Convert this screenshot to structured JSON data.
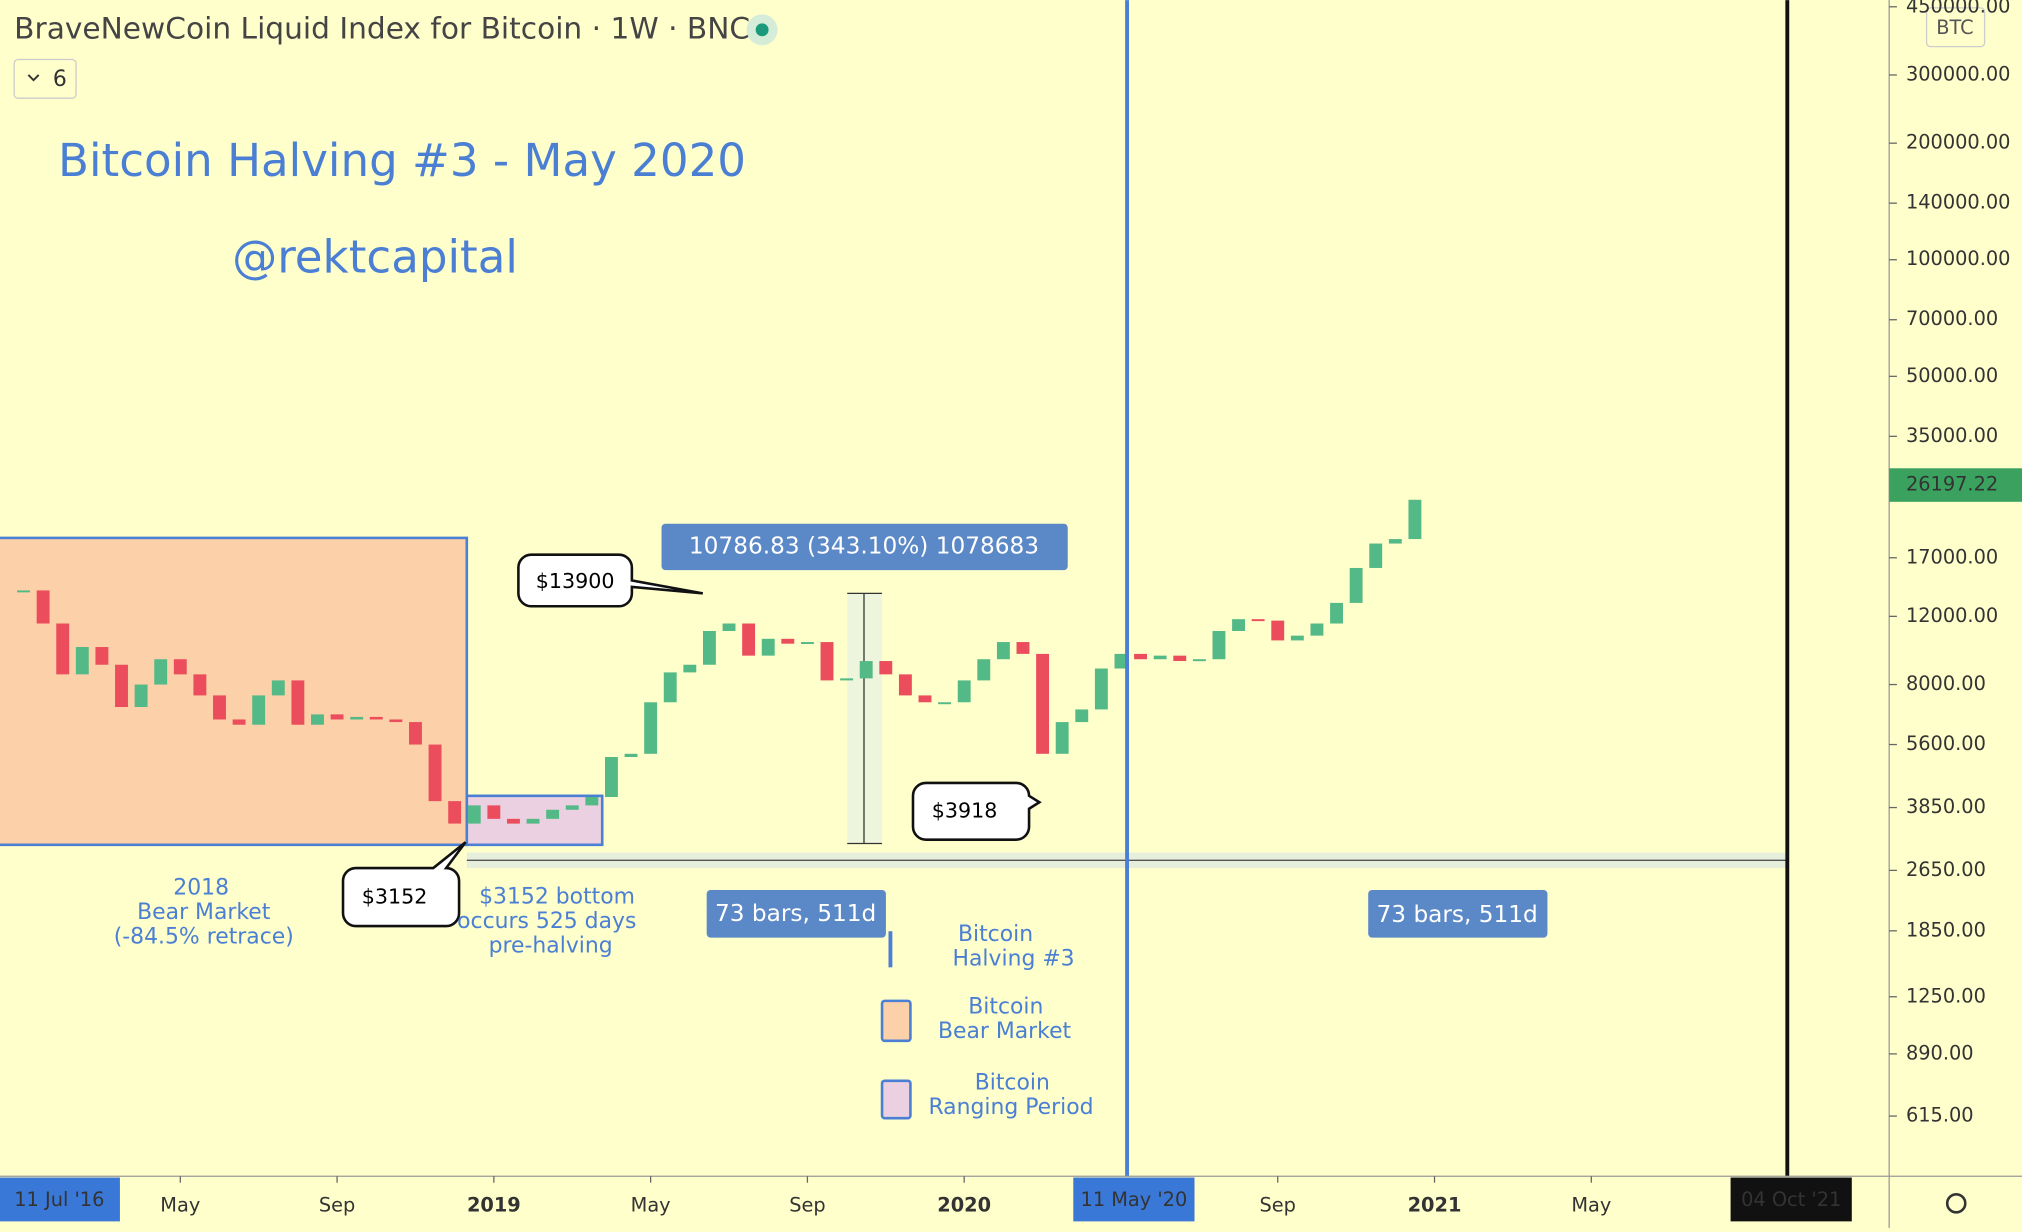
{
  "header": {
    "title": "BraveNewCoin Liquid Index for Bitcoin · 1W · BNC",
    "indicator_count": "6",
    "currency": "BTC"
  },
  "chart_data": {
    "type": "candlestick",
    "log_scale": true,
    "up_color": "#53b987",
    "down_color": "#eb4d5c",
    "x": [
      0,
      0.5,
      1,
      1.5,
      2,
      2.5,
      3,
      3.5,
      4,
      4.5,
      5,
      5.5,
      6,
      6.5,
      7,
      7.5,
      8,
      8.5,
      9,
      9.5,
      10,
      10.5,
      11,
      11.5,
      12,
      12.5,
      13,
      13.5,
      14,
      14.5,
      15,
      15.5,
      16,
      16.5,
      17,
      17.5,
      18,
      18.5,
      19,
      19.5,
      20,
      20.5,
      21,
      21.5,
      22,
      22.5,
      23,
      23.5,
      24,
      24.5,
      25,
      25.5,
      26,
      26.5,
      27,
      27.5,
      28,
      28.5,
      29,
      29.5,
      30,
      30.5,
      31,
      31.5,
      32,
      32.5,
      33,
      33.5,
      34,
      34.5,
      35,
      35.5
    ],
    "values": [
      14000,
      11500,
      8500,
      10000,
      9000,
      7000,
      8000,
      9300,
      8500,
      7500,
      6500,
      6300,
      7500,
      8200,
      6300,
      6700,
      6500,
      6600,
      6500,
      6400,
      5600,
      4000,
      3500,
      3900,
      3600,
      3500,
      3600,
      3800,
      3900,
      4100,
      5200,
      5300,
      7200,
      8600,
      9000,
      11000,
      11500,
      9500,
      10500,
      10200,
      10300,
      8200,
      8300,
      9200,
      8500,
      7500,
      7200,
      7200,
      8200,
      9300,
      10300,
      9600,
      5300,
      6400,
      6900,
      8800,
      9600,
      9300,
      9500,
      9200,
      9300,
      11000,
      11800,
      11700,
      10400,
      10700,
      11500,
      13000,
      16000,
      18500,
      19000,
      24000
    ],
    "xlim": [
      -0.6,
      47.6
    ],
    "xticks": [
      {
        "value": 4,
        "label": "May"
      },
      {
        "value": 8,
        "label": "Sep"
      },
      {
        "value": 12,
        "label": "2019"
      },
      {
        "value": 16,
        "label": "May"
      },
      {
        "value": 20,
        "label": "Sep"
      },
      {
        "value": 24,
        "label": "2020"
      },
      {
        "value": 32,
        "label": "Sep"
      },
      {
        "value": 36,
        "label": "2021"
      },
      {
        "value": 40,
        "label": "May"
      }
    ],
    "x_highlights": [
      {
        "value": -0.3,
        "label": "11 Jul '16"
      },
      {
        "value": 28.33,
        "label": "11 May '20"
      },
      {
        "value": 45.1,
        "label": "04 Oct '21"
      }
    ],
    "ylim": [
      430,
      468000
    ],
    "yticks": [
      {
        "value": 450000,
        "label": "450000.00"
      },
      {
        "value": 300000,
        "label": "300000.00"
      },
      {
        "value": 200000,
        "label": "200000.00"
      },
      {
        "value": 140000,
        "label": "140000.00"
      },
      {
        "value": 100000,
        "label": "100000.00"
      },
      {
        "value": 70000,
        "label": "70000.00"
      },
      {
        "value": 50000,
        "label": "50000.00"
      },
      {
        "value": 35000,
        "label": "35000.00"
      },
      {
        "value": 17000,
        "label": "17000.00"
      },
      {
        "value": 12000,
        "label": "12000.00"
      },
      {
        "value": 8000,
        "label": "8000.00"
      },
      {
        "value": 5600,
        "label": "5600.00"
      },
      {
        "value": 3850,
        "label": "3850.00"
      },
      {
        "value": 2650,
        "label": "2650.00"
      },
      {
        "value": 1850,
        "label": "1850.00"
      },
      {
        "value": 1250,
        "label": "1250.00"
      },
      {
        "value": 890,
        "label": "890.00"
      },
      {
        "value": 615,
        "label": "615.00"
      }
    ],
    "last_price": 26197.22
  },
  "annotations": {
    "title": "Bitcoin Halving #3 - May 2020",
    "author": "@rektcapital",
    "measure": "10786.83 (343.10%) 1078683",
    "high_callout": "$13900",
    "low_callout": "$3918",
    "bottom_callout": "$3152",
    "bear_note": [
      "2018",
      "Bear Market",
      "(-84.5% retrace)"
    ],
    "bottom_note": [
      "$3152 bottom",
      "occurs 525 days",
      "pre-halving"
    ],
    "range_left": "73 bars, 511d",
    "range_right": "73 bars, 511d",
    "legend": [
      [
        "Bitcoin",
        "Halving #3"
      ],
      [
        "Bitcoin",
        "Bear Market"
      ],
      [
        "Bitcoin",
        "Ranging Period"
      ]
    ]
  }
}
